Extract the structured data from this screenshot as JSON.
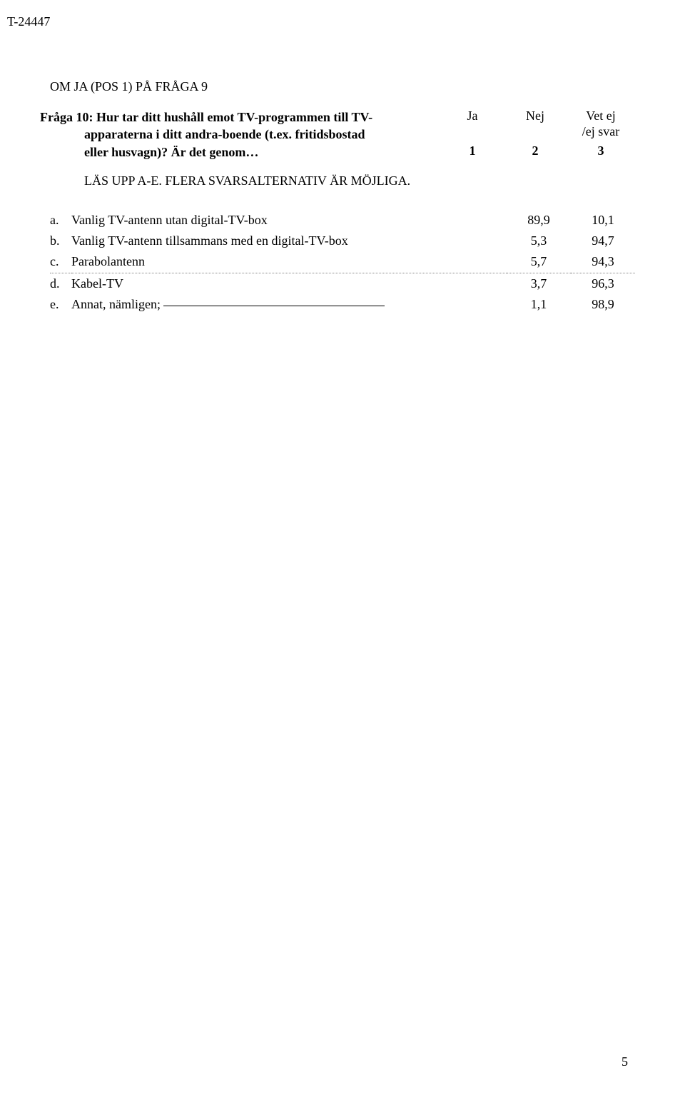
{
  "docId": "T-24447",
  "sectionTitle": "OM JA (POS 1) PÅ FRÅGA 9",
  "question": {
    "label": "Fråga 10:",
    "line1": "Hur tar ditt hushåll emot TV-programmen till TV-",
    "line2": "apparaterna i ditt andra-boende (t.ex. fritidsbostad",
    "line3": "eller husvagn)? Är det genom…"
  },
  "header": {
    "col1": "Ja",
    "col2": "Nej",
    "col3a": "Vet ej",
    "col3b": "/ej svar",
    "code1": "1",
    "code2": "2",
    "code3": "3"
  },
  "instruction": "LÄS UPP A-E. FLERA SVARSALTERNATIV ÄR MÖJLIGA.",
  "rows": {
    "a": {
      "letter": "a.",
      "label": "Vanlig TV-antenn utan digital-TV-box",
      "v1": "89,9",
      "v2": "10,1"
    },
    "b": {
      "letter": "b.",
      "label": "Vanlig TV-antenn tillsammans med en digital-TV-box",
      "v1": "5,3",
      "v2": "94,7"
    },
    "c": {
      "letter": "c.",
      "label": "Parabolantenn",
      "v1": "5,7",
      "v2": "94,3"
    },
    "d": {
      "letter": "d.",
      "label": "Kabel-TV",
      "v1": "3,7",
      "v2": "96,3"
    },
    "e": {
      "letter": "e.",
      "label": "Annat, nämligen;",
      "v1": "1,1",
      "v2": "98,9"
    }
  },
  "pageNumber": "5"
}
